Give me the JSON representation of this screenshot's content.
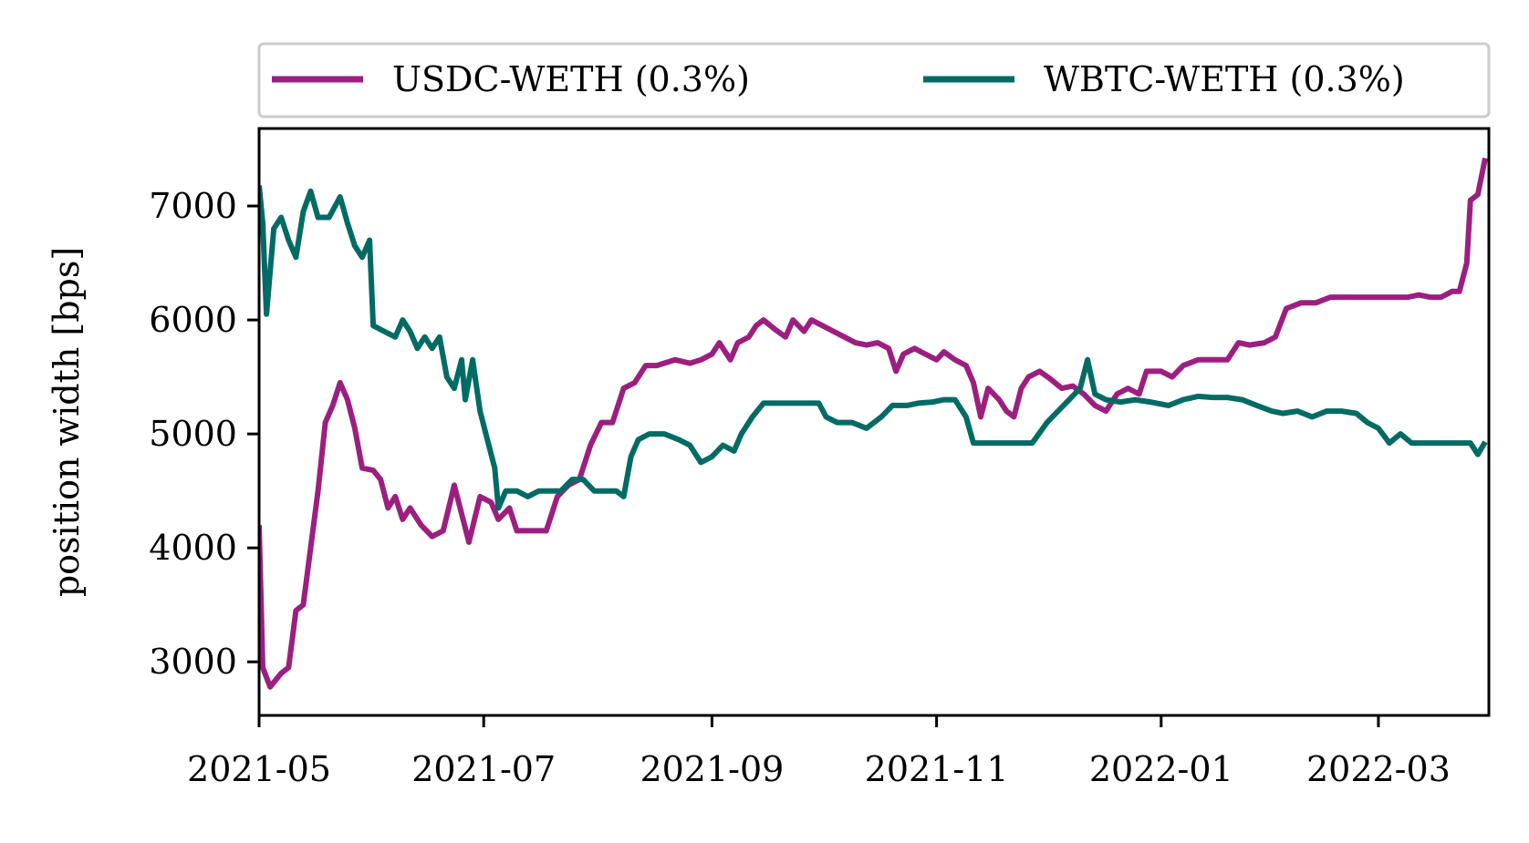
{
  "chart_data": {
    "type": "line",
    "ylabel": "position width [bps]",
    "xlabel": "",
    "x_ticks": [
      "2021-05",
      "2021-07",
      "2021-09",
      "2021-11",
      "2022-01",
      "2022-03"
    ],
    "y_ticks": [
      3000,
      4000,
      5000,
      6000,
      7000
    ],
    "xlim": [
      "2021-05-01",
      "2022-03-31"
    ],
    "ylim": [
      2530,
      7680
    ],
    "legend_position": "top, outside plot, two columns",
    "grid": false,
    "series": [
      {
        "name": "USDC-WETH (0.3%)",
        "color": "#9c1f80",
        "points": [
          [
            "2021-05-01",
            4200
          ],
          [
            "2021-05-02",
            2950
          ],
          [
            "2021-05-04",
            2780
          ],
          [
            "2021-05-07",
            2900
          ],
          [
            "2021-05-09",
            2950
          ],
          [
            "2021-05-11",
            3450
          ],
          [
            "2021-05-13",
            3500
          ],
          [
            "2021-05-15",
            4000
          ],
          [
            "2021-05-17",
            4500
          ],
          [
            "2021-05-19",
            5100
          ],
          [
            "2021-05-21",
            5250
          ],
          [
            "2021-05-23",
            5450
          ],
          [
            "2021-05-25",
            5300
          ],
          [
            "2021-05-27",
            5050
          ],
          [
            "2021-05-29",
            4700
          ],
          [
            "2021-06-01",
            4680
          ],
          [
            "2021-06-03",
            4600
          ],
          [
            "2021-06-05",
            4350
          ],
          [
            "2021-06-07",
            4450
          ],
          [
            "2021-06-09",
            4250
          ],
          [
            "2021-06-11",
            4350
          ],
          [
            "2021-06-14",
            4200
          ],
          [
            "2021-06-17",
            4100
          ],
          [
            "2021-06-20",
            4150
          ],
          [
            "2021-06-23",
            4550
          ],
          [
            "2021-06-25",
            4300
          ],
          [
            "2021-06-27",
            4050
          ],
          [
            "2021-06-30",
            4450
          ],
          [
            "2021-07-03",
            4400
          ],
          [
            "2021-07-05",
            4250
          ],
          [
            "2021-07-08",
            4350
          ],
          [
            "2021-07-10",
            4150
          ],
          [
            "2021-07-18",
            4150
          ],
          [
            "2021-07-21",
            4450
          ],
          [
            "2021-07-24",
            4550
          ],
          [
            "2021-07-27",
            4600
          ],
          [
            "2021-07-30",
            4900
          ],
          [
            "2021-08-02",
            5100
          ],
          [
            "2021-08-05",
            5100
          ],
          [
            "2021-08-08",
            5400
          ],
          [
            "2021-08-11",
            5450
          ],
          [
            "2021-08-14",
            5600
          ],
          [
            "2021-08-17",
            5600
          ],
          [
            "2021-08-22",
            5650
          ],
          [
            "2021-08-26",
            5620
          ],
          [
            "2021-08-29",
            5650
          ],
          [
            "2021-09-01",
            5700
          ],
          [
            "2021-09-03",
            5800
          ],
          [
            "2021-09-06",
            5650
          ],
          [
            "2021-09-08",
            5800
          ],
          [
            "2021-09-11",
            5850
          ],
          [
            "2021-09-13",
            5950
          ],
          [
            "2021-09-15",
            6000
          ],
          [
            "2021-09-18",
            5920
          ],
          [
            "2021-09-21",
            5850
          ],
          [
            "2021-09-23",
            6000
          ],
          [
            "2021-09-26",
            5900
          ],
          [
            "2021-09-28",
            6000
          ],
          [
            "2021-10-01",
            5950
          ],
          [
            "2021-10-04",
            5900
          ],
          [
            "2021-10-07",
            5850
          ],
          [
            "2021-10-10",
            5800
          ],
          [
            "2021-10-13",
            5780
          ],
          [
            "2021-10-16",
            5800
          ],
          [
            "2021-10-19",
            5750
          ],
          [
            "2021-10-21",
            5550
          ],
          [
            "2021-10-23",
            5700
          ],
          [
            "2021-10-26",
            5750
          ],
          [
            "2021-10-29",
            5700
          ],
          [
            "2021-11-01",
            5650
          ],
          [
            "2021-11-03",
            5720
          ],
          [
            "2021-11-06",
            5650
          ],
          [
            "2021-11-09",
            5600
          ],
          [
            "2021-11-11",
            5450
          ],
          [
            "2021-11-13",
            5150
          ],
          [
            "2021-11-15",
            5400
          ],
          [
            "2021-11-18",
            5300
          ],
          [
            "2021-11-20",
            5200
          ],
          [
            "2021-11-22",
            5150
          ],
          [
            "2021-11-24",
            5400
          ],
          [
            "2021-11-26",
            5500
          ],
          [
            "2021-11-29",
            5550
          ],
          [
            "2021-12-02",
            5480
          ],
          [
            "2021-12-05",
            5400
          ],
          [
            "2021-12-08",
            5420
          ],
          [
            "2021-12-11",
            5350
          ],
          [
            "2021-12-14",
            5250
          ],
          [
            "2021-12-17",
            5200
          ],
          [
            "2021-12-20",
            5350
          ],
          [
            "2021-12-23",
            5400
          ],
          [
            "2021-12-26",
            5350
          ],
          [
            "2021-12-28",
            5550
          ],
          [
            "2022-01-01",
            5550
          ],
          [
            "2022-01-04",
            5500
          ],
          [
            "2022-01-07",
            5600
          ],
          [
            "2022-01-11",
            5650
          ],
          [
            "2022-01-15",
            5650
          ],
          [
            "2022-01-19",
            5650
          ],
          [
            "2022-01-22",
            5800
          ],
          [
            "2022-01-25",
            5780
          ],
          [
            "2022-01-29",
            5800
          ],
          [
            "2022-02-01",
            5850
          ],
          [
            "2022-02-04",
            6100
          ],
          [
            "2022-02-08",
            6150
          ],
          [
            "2022-02-12",
            6150
          ],
          [
            "2022-02-16",
            6200
          ],
          [
            "2022-02-20",
            6200
          ],
          [
            "2022-02-25",
            6200
          ],
          [
            "2022-03-01",
            6200
          ],
          [
            "2022-03-05",
            6200
          ],
          [
            "2022-03-09",
            6200
          ],
          [
            "2022-03-12",
            6220
          ],
          [
            "2022-03-15",
            6200
          ],
          [
            "2022-03-18",
            6200
          ],
          [
            "2022-03-21",
            6250
          ],
          [
            "2022-03-23",
            6250
          ],
          [
            "2022-03-25",
            6500
          ],
          [
            "2022-03-26",
            7050
          ],
          [
            "2022-03-28",
            7100
          ],
          [
            "2022-03-30",
            7420
          ]
        ]
      },
      {
        "name": "WBTC-WETH (0.3%)",
        "color": "#006b64",
        "points": [
          [
            "2021-05-01",
            7180
          ],
          [
            "2021-05-02",
            6850
          ],
          [
            "2021-05-03",
            6050
          ],
          [
            "2021-05-05",
            6800
          ],
          [
            "2021-05-07",
            6900
          ],
          [
            "2021-05-09",
            6700
          ],
          [
            "2021-05-11",
            6550
          ],
          [
            "2021-05-13",
            6950
          ],
          [
            "2021-05-15",
            7130
          ],
          [
            "2021-05-17",
            6900
          ],
          [
            "2021-05-20",
            6900
          ],
          [
            "2021-05-23",
            7080
          ],
          [
            "2021-05-25",
            6850
          ],
          [
            "2021-05-27",
            6650
          ],
          [
            "2021-05-29",
            6550
          ],
          [
            "2021-05-31",
            6700
          ],
          [
            "2021-06-01",
            5950
          ],
          [
            "2021-06-04",
            5900
          ],
          [
            "2021-06-07",
            5850
          ],
          [
            "2021-06-09",
            6000
          ],
          [
            "2021-06-11",
            5900
          ],
          [
            "2021-06-13",
            5750
          ],
          [
            "2021-06-15",
            5850
          ],
          [
            "2021-06-17",
            5750
          ],
          [
            "2021-06-19",
            5850
          ],
          [
            "2021-06-21",
            5500
          ],
          [
            "2021-06-23",
            5400
          ],
          [
            "2021-06-25",
            5650
          ],
          [
            "2021-06-26",
            5300
          ],
          [
            "2021-06-28",
            5650
          ],
          [
            "2021-06-30",
            5200
          ],
          [
            "2021-07-02",
            4950
          ],
          [
            "2021-07-04",
            4700
          ],
          [
            "2021-07-05",
            4350
          ],
          [
            "2021-07-07",
            4500
          ],
          [
            "2021-07-10",
            4500
          ],
          [
            "2021-07-13",
            4450
          ],
          [
            "2021-07-16",
            4500
          ],
          [
            "2021-07-19",
            4500
          ],
          [
            "2021-07-22",
            4500
          ],
          [
            "2021-07-25",
            4600
          ],
          [
            "2021-07-28",
            4600
          ],
          [
            "2021-07-31",
            4500
          ],
          [
            "2021-08-03",
            4500
          ],
          [
            "2021-08-06",
            4500
          ],
          [
            "2021-08-08",
            4450
          ],
          [
            "2021-08-10",
            4800
          ],
          [
            "2021-08-12",
            4950
          ],
          [
            "2021-08-15",
            5000
          ],
          [
            "2021-08-19",
            5000
          ],
          [
            "2021-08-23",
            4950
          ],
          [
            "2021-08-26",
            4900
          ],
          [
            "2021-08-29",
            4750
          ],
          [
            "2021-09-01",
            4800
          ],
          [
            "2021-09-04",
            4900
          ],
          [
            "2021-09-07",
            4850
          ],
          [
            "2021-09-09",
            5000
          ],
          [
            "2021-09-12",
            5150
          ],
          [
            "2021-09-15",
            5270
          ],
          [
            "2021-09-20",
            5270
          ],
          [
            "2021-09-25",
            5270
          ],
          [
            "2021-09-30",
            5270
          ],
          [
            "2021-10-02",
            5150
          ],
          [
            "2021-10-05",
            5100
          ],
          [
            "2021-10-09",
            5100
          ],
          [
            "2021-10-13",
            5050
          ],
          [
            "2021-10-17",
            5150
          ],
          [
            "2021-10-20",
            5250
          ],
          [
            "2021-10-24",
            5250
          ],
          [
            "2021-10-27",
            5270
          ],
          [
            "2021-10-31",
            5280
          ],
          [
            "2021-11-03",
            5300
          ],
          [
            "2021-11-06",
            5300
          ],
          [
            "2021-11-09",
            5150
          ],
          [
            "2021-11-11",
            4920
          ],
          [
            "2021-11-15",
            4920
          ],
          [
            "2021-11-19",
            4920
          ],
          [
            "2021-11-23",
            4920
          ],
          [
            "2021-11-27",
            4920
          ],
          [
            "2021-12-01",
            5100
          ],
          [
            "2021-12-04",
            5200
          ],
          [
            "2021-12-07",
            5300
          ],
          [
            "2021-12-10",
            5400
          ],
          [
            "2021-12-12",
            5650
          ],
          [
            "2021-12-14",
            5350
          ],
          [
            "2021-12-17",
            5300
          ],
          [
            "2021-12-21",
            5280
          ],
          [
            "2021-12-25",
            5300
          ],
          [
            "2021-12-29",
            5280
          ],
          [
            "2022-01-03",
            5250
          ],
          [
            "2022-01-07",
            5300
          ],
          [
            "2022-01-11",
            5330
          ],
          [
            "2022-01-15",
            5320
          ],
          [
            "2022-01-19",
            5320
          ],
          [
            "2022-01-23",
            5300
          ],
          [
            "2022-01-27",
            5250
          ],
          [
            "2022-01-31",
            5200
          ],
          [
            "2022-02-03",
            5180
          ],
          [
            "2022-02-07",
            5200
          ],
          [
            "2022-02-11",
            5150
          ],
          [
            "2022-02-15",
            5200
          ],
          [
            "2022-02-19",
            5200
          ],
          [
            "2022-02-23",
            5180
          ],
          [
            "2022-02-26",
            5100
          ],
          [
            "2022-03-01",
            5050
          ],
          [
            "2022-03-04",
            4920
          ],
          [
            "2022-03-07",
            5000
          ],
          [
            "2022-03-10",
            4920
          ],
          [
            "2022-03-14",
            4920
          ],
          [
            "2022-03-18",
            4920
          ],
          [
            "2022-03-22",
            4920
          ],
          [
            "2022-03-26",
            4920
          ],
          [
            "2022-03-28",
            4820
          ],
          [
            "2022-03-30",
            4930
          ]
        ]
      }
    ]
  }
}
